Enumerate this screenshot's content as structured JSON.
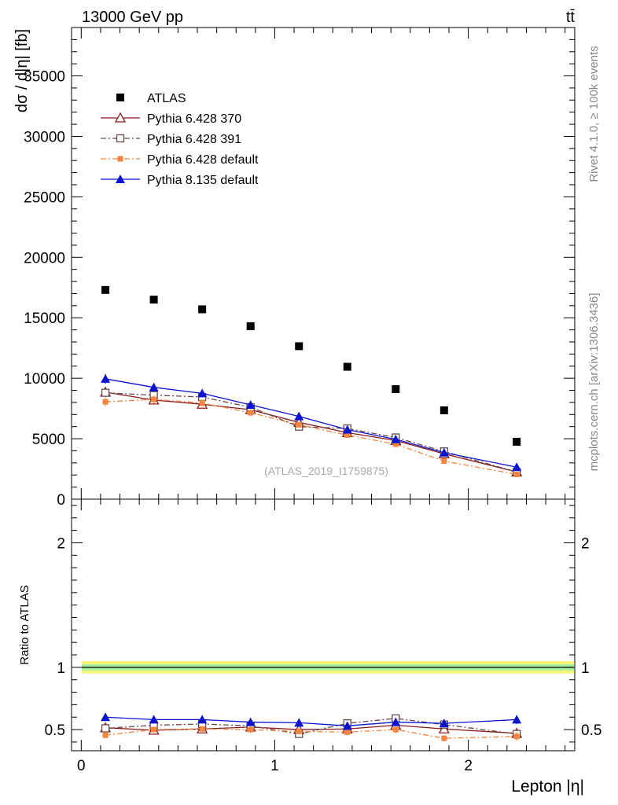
{
  "header": {
    "energy_label": "13000 GeV pp",
    "process_label": "tt̄"
  },
  "side_labels": {
    "rivet": "Rivet 4.1.0, ≥ 100k events",
    "mcplots": "mcplots.cern.ch [arXiv:1306.3436]"
  },
  "chart_data": [
    {
      "type": "scatter",
      "title": "",
      "analysis_label": "(ATLAS_2019_I1759875)",
      "xlabel": "Lepton |η|",
      "ylabel": "dσ / d|η| [fb]",
      "xlim": [
        -0.05,
        2.55
      ],
      "ylim": [
        0,
        39000
      ],
      "yticks": [
        0,
        5000,
        10000,
        15000,
        20000,
        25000,
        30000,
        35000
      ],
      "ytick_labels": [
        "0",
        "5000",
        "10000",
        "15000",
        "20000",
        "25000",
        "30000",
        "35000"
      ],
      "x": [
        0.125,
        0.375,
        0.625,
        0.875,
        1.125,
        1.375,
        1.625,
        1.875,
        2.25
      ],
      "legend_position": "top-left",
      "series": [
        {
          "name": "ATLAS",
          "color": "#000000",
          "marker": "square-filled",
          "line": "none",
          "values": [
            17300,
            16500,
            15700,
            14300,
            12650,
            10950,
            9100,
            7350,
            4750
          ],
          "errors": [
            0,
            0,
            0,
            0,
            0,
            0,
            0,
            0,
            0
          ]
        },
        {
          "name": "Pythia 6.428 370",
          "color": "#8b1a1a",
          "marker": "triangle-open",
          "line": "solid",
          "values": [
            8850,
            8200,
            7850,
            7400,
            6350,
            5500,
            4850,
            3750,
            2250
          ],
          "errors": [
            350,
            300,
            300,
            280,
            250,
            220,
            200,
            180,
            150
          ]
        },
        {
          "name": "Pythia 6.428 391",
          "color": "#6b4a4a",
          "marker": "square-open",
          "line": "dashdot",
          "values": [
            8800,
            8600,
            8450,
            7600,
            6000,
            5850,
            5100,
            3950,
            2250
          ],
          "errors": [
            350,
            320,
            300,
            280,
            250,
            230,
            210,
            180,
            150
          ]
        },
        {
          "name": "Pythia 6.428 default",
          "color": "#f5843c",
          "marker": "square-filled-small",
          "line": "dashdot",
          "values": [
            8050,
            8250,
            7950,
            7150,
            6150,
            5300,
            4550,
            3150,
            2050
          ],
          "errors": [
            350,
            320,
            300,
            280,
            250,
            220,
            200,
            170,
            150
          ]
        },
        {
          "name": "Pythia 8.135 default",
          "color": "#0a14d0",
          "marker": "triangle-filled",
          "line": "solid",
          "values": [
            9950,
            9250,
            8750,
            7800,
            6850,
            5750,
            4950,
            3850,
            2650
          ],
          "errors": [
            400,
            350,
            330,
            300,
            270,
            240,
            210,
            180,
            160
          ]
        }
      ]
    },
    {
      "type": "scatter",
      "title": "",
      "xlabel": "Lepton |η|",
      "ylabel": "Ratio to ATLAS",
      "xlim": [
        -0.05,
        2.55
      ],
      "ylim": [
        0.33,
        2.35
      ],
      "xticks": [
        0,
        1,
        2
      ],
      "xtick_labels": [
        "0",
        "1",
        "2"
      ],
      "yticks": [
        0.5,
        1,
        2
      ],
      "ytick_labels": [
        "0.5",
        "1",
        "2"
      ],
      "x": [
        0.125,
        0.375,
        0.625,
        0.875,
        1.125,
        1.375,
        1.625,
        1.875,
        2.25
      ],
      "reference_line": 1.0,
      "bands": [
        {
          "name": "ATLAS total uncertainty",
          "color": "#f5f57a",
          "low": 0.95,
          "high": 1.05
        },
        {
          "name": "ATLAS stat uncertainty",
          "color": "#a8f0a0",
          "low": 0.975,
          "high": 1.025
        }
      ],
      "series": [
        {
          "name": "Pythia 6.428 370",
          "color": "#8b1a1a",
          "marker": "triangle-open",
          "line": "solid",
          "values": [
            0.515,
            0.495,
            0.505,
            0.52,
            0.5,
            0.505,
            0.535,
            0.505,
            0.47
          ],
          "errors": [
            0.02,
            0.02,
            0.02,
            0.02,
            0.02,
            0.02,
            0.025,
            0.025,
            0.03
          ]
        },
        {
          "name": "Pythia 6.428 391",
          "color": "#6b4a4a",
          "marker": "square-open",
          "line": "dashdot",
          "values": [
            0.51,
            0.535,
            0.545,
            0.53,
            0.465,
            0.55,
            0.59,
            0.54,
            0.465
          ],
          "errors": [
            0.02,
            0.02,
            0.02,
            0.02,
            0.025,
            0.02,
            0.025,
            0.025,
            0.03
          ]
        },
        {
          "name": "Pythia 6.428 default",
          "color": "#f5843c",
          "marker": "square-filled-small",
          "line": "dashdot",
          "values": [
            0.455,
            0.5,
            0.505,
            0.5,
            0.485,
            0.48,
            0.5,
            0.43,
            0.445
          ],
          "errors": [
            0.025,
            0.02,
            0.02,
            0.025,
            0.025,
            0.025,
            0.03,
            0.025,
            0.035
          ]
        },
        {
          "name": "Pythia 8.135 default",
          "color": "#0a14d0",
          "marker": "triangle-filled",
          "line": "solid",
          "values": [
            0.6,
            0.58,
            0.58,
            0.56,
            0.555,
            0.53,
            0.56,
            0.55,
            0.58
          ],
          "errors": [
            0.025,
            0.025,
            0.025,
            0.025,
            0.025,
            0.025,
            0.025,
            0.03,
            0.035
          ]
        }
      ]
    }
  ]
}
